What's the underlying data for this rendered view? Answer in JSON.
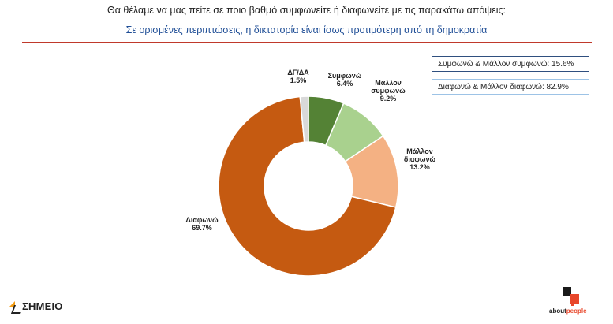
{
  "header": {
    "title": "Θα θέλαμε να μας πείτε σε ποιο βαθμό συμφωνείτε ή διαφωνείτε με τις παρακάτω απόψεις:",
    "subtitle": "Σε ορισμένες περιπτώσεις, η δικτατορία είναι ίσως προτιμότερη από τη δημοκρατία"
  },
  "summary": {
    "agree": "Συμφωνώ & Μάλλον συμφωνώ: 15.6%",
    "disagree": "Διαφωνώ & Μάλλον διαφωνώ: 82.9%"
  },
  "chart_data": {
    "type": "pie",
    "subtype": "donut",
    "title": "Σε ορισμένες περιπτώσεις, η δικτατορία είναι ίσως προτιμότερη από τη δημοκρατία",
    "categories": [
      "Συμφωνώ",
      "Μάλλον συμφωνώ",
      "Μάλλον διαφωνώ",
      "Διαφωνώ",
      "ΔΓ/ΔΑ"
    ],
    "values": [
      6.4,
      9.2,
      13.2,
      69.7,
      1.5
    ],
    "value_labels": [
      "6.4%",
      "9.2%",
      "13.2%",
      "69.7%",
      "1.5%"
    ],
    "colors": [
      "#548235",
      "#a9d18e",
      "#f4b183",
      "#c55a11",
      "#d9d9d9"
    ],
    "label_lines": [
      [
        "Συμφωνώ"
      ],
      [
        "Μάλλον",
        "συμφωνώ"
      ],
      [
        "Μάλλον",
        "διαφωνώ"
      ],
      [
        "Διαφωνώ"
      ],
      [
        "ΔΓ/ΔΑ"
      ]
    ]
  },
  "logos": {
    "left": "ΣΗΜΕΙΟ",
    "right_main": "about",
    "right_accent": "people"
  }
}
